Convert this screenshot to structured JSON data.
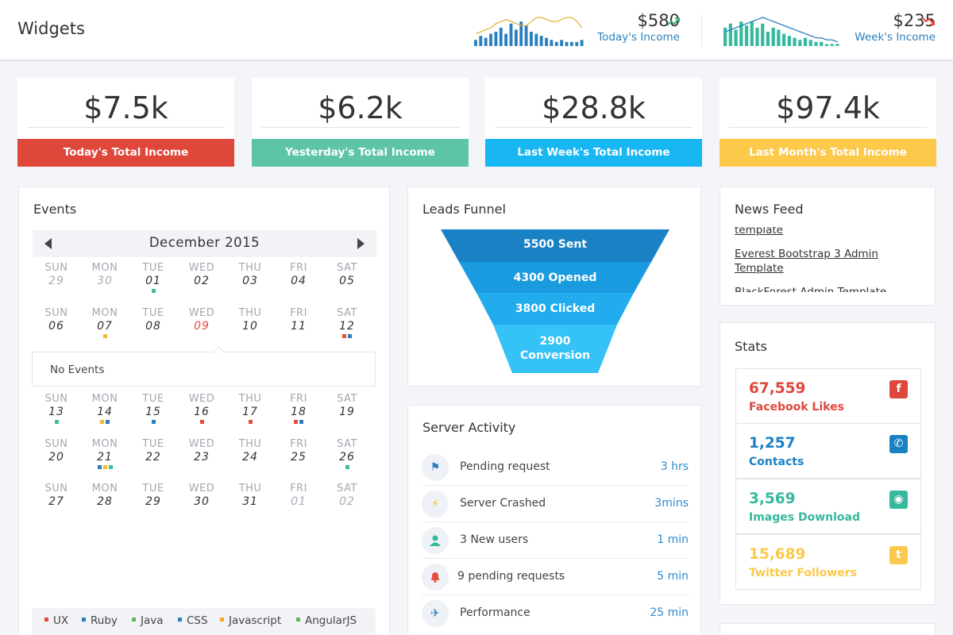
{
  "header": {
    "title": "Widgets",
    "today": {
      "amount": "$580",
      "label": "Today's Income",
      "trend": "up",
      "trend_color": "#3cb371",
      "sparkline": {
        "bars": [
          3,
          5,
          4,
          6,
          7,
          9,
          6,
          11,
          8,
          12,
          10,
          7,
          6,
          5,
          4,
          3,
          2,
          3,
          2,
          2,
          2,
          3
        ],
        "line": [
          6,
          7,
          8,
          9,
          11,
          12,
          13,
          12,
          11,
          10,
          10,
          12,
          14,
          14,
          13,
          12,
          12,
          13,
          14,
          14,
          12,
          9
        ]
      },
      "bar_color": "#2a7fbf",
      "line_color": "#e6b341"
    },
    "week": {
      "amount": "$235",
      "label": "Week's Income",
      "trend": "down",
      "trend_color": "#e74c3c",
      "sparkline": {
        "bars": [
          9,
          11,
          8,
          12,
          10,
          12,
          9,
          11,
          7,
          9,
          8,
          6,
          5,
          4,
          3,
          4,
          3,
          2,
          2,
          1,
          1,
          1
        ],
        "line": [
          7,
          8,
          9,
          10,
          11,
          12,
          13,
          14,
          13,
          12,
          11,
          10,
          9,
          8,
          7,
          6,
          5,
          4,
          4,
          3,
          3,
          2
        ]
      },
      "bar_color": "#36b89d",
      "line_color": "#2a7fbf"
    }
  },
  "kpis": [
    {
      "value": "$7.5k",
      "label": "Today's Total Income",
      "color": "#e0473b"
    },
    {
      "value": "$6.2k",
      "label": "Yesterday's Total Income",
      "color": "#5dc5a6"
    },
    {
      "value": "$28.8k",
      "label": "Last Week's Total Income",
      "color": "#19b7f1"
    },
    {
      "value": "$97.4k",
      "label": "Last Month's Total Income",
      "color": "#fcc94a"
    }
  ],
  "events": {
    "title": "Events",
    "month": "December 2015",
    "day_names": [
      "SUN",
      "MON",
      "TUE",
      "WED",
      "THU",
      "FRI",
      "SAT"
    ],
    "weeks": [
      [
        {
          "d": "29",
          "muted": true
        },
        {
          "d": "30",
          "muted": true
        },
        {
          "d": "01",
          "dots": [
            "green"
          ]
        },
        {
          "d": "02"
        },
        {
          "d": "03"
        },
        {
          "d": "04"
        },
        {
          "d": "05"
        }
      ],
      [
        {
          "d": "06"
        },
        {
          "d": "07",
          "dots": [
            "orange"
          ]
        },
        {
          "d": "08"
        },
        {
          "d": "09",
          "today": true
        },
        {
          "d": "10"
        },
        {
          "d": "11"
        },
        {
          "d": "12",
          "dots": [
            "red",
            "blue"
          ]
        }
      ],
      [
        {
          "d": "13",
          "dots": [
            "green"
          ]
        },
        {
          "d": "14",
          "dots": [
            "orange",
            "blue"
          ]
        },
        {
          "d": "15",
          "dots": [
            "blue"
          ]
        },
        {
          "d": "16",
          "dots": [
            "red"
          ]
        },
        {
          "d": "17",
          "dots": [
            "red"
          ]
        },
        {
          "d": "18",
          "dots": [
            "red",
            "blue"
          ]
        },
        {
          "d": "19"
        }
      ],
      [
        {
          "d": "20"
        },
        {
          "d": "21",
          "dots": [
            "blue",
            "orange",
            "green"
          ]
        },
        {
          "d": "22"
        },
        {
          "d": "23"
        },
        {
          "d": "24"
        },
        {
          "d": "25"
        },
        {
          "d": "26",
          "dots": [
            "green"
          ]
        }
      ],
      [
        {
          "d": "27"
        },
        {
          "d": "28"
        },
        {
          "d": "29"
        },
        {
          "d": "30"
        },
        {
          "d": "31"
        },
        {
          "d": "01",
          "muted": true
        },
        {
          "d": "02",
          "muted": true
        }
      ]
    ],
    "no_events": "No Events",
    "legend": [
      {
        "label": "UX",
        "color": "#e74c3c"
      },
      {
        "label": "Ruby",
        "color": "#2a7fbf"
      },
      {
        "label": "Java",
        "color": "#5cb85c"
      },
      {
        "label": "CSS",
        "color": "#2a7fbf"
      },
      {
        "label": "Javascript",
        "color": "#f5a623"
      },
      {
        "label": "AngularJS",
        "color": "#5cb85c"
      }
    ],
    "dot_colors": {
      "green": "#3fbf8f",
      "orange": "#f5b82e",
      "red": "#e74c3c",
      "blue": "#2a7fbf"
    }
  },
  "funnel": {
    "title": "Leads Funnel",
    "stages": [
      {
        "label": "5500 Sent",
        "color": "#1a82c4"
      },
      {
        "label": "4300 Opened",
        "color": "#1a9be0"
      },
      {
        "label": "3800 Clicked",
        "color": "#22acee"
      },
      {
        "label": "2900\nConversion",
        "label_lines": [
          "2900",
          "Conversion"
        ],
        "color": "#35c2f7"
      }
    ]
  },
  "server": {
    "title": "Server Activity",
    "items": [
      {
        "icon": "flag-icon",
        "glyph": "⚑",
        "icon_color": "#2a7fbf",
        "text": "Pending request",
        "time": "3 hrs"
      },
      {
        "icon": "bolt-icon",
        "glyph": "⚡",
        "icon_color": "#f5b82e",
        "text": "Server Crashed",
        "time": "3mins"
      },
      {
        "icon": "user-icon",
        "glyph": "●",
        "icon_color": "#36b89d",
        "text": "3 New users",
        "time": "1 min"
      },
      {
        "icon": "bell-icon",
        "glyph": "🔔",
        "icon_color": "#e74c3c",
        "text": "9 pending requests",
        "time": "5 min"
      },
      {
        "icon": "plane-icon",
        "glyph": "✈",
        "icon_color": "#2a7fbf",
        "text": "Performance",
        "time": "25 min"
      }
    ]
  },
  "news": {
    "title": "News Feed",
    "items": [
      "template",
      "Everest Bootstrap 3 Admin",
      "Template",
      "BlackForest Admin Template"
    ]
  },
  "stats": {
    "title": "Stats",
    "items": [
      {
        "value": "67,559",
        "label": "Facebook Likes",
        "color": "#e0473b",
        "icon": "facebook-icon",
        "glyph": "f"
      },
      {
        "value": "1,257",
        "label": "Contacts",
        "color": "#1a82c4",
        "icon": "phone-icon",
        "glyph": "✆"
      },
      {
        "value": "3,569",
        "label": "Images Download",
        "color": "#36b89d",
        "icon": "github-icon",
        "glyph": "◉"
      },
      {
        "value": "15,689",
        "label": "Twitter Followers",
        "color": "#fcc94a",
        "icon": "twitter-icon",
        "glyph": "t"
      }
    ]
  }
}
